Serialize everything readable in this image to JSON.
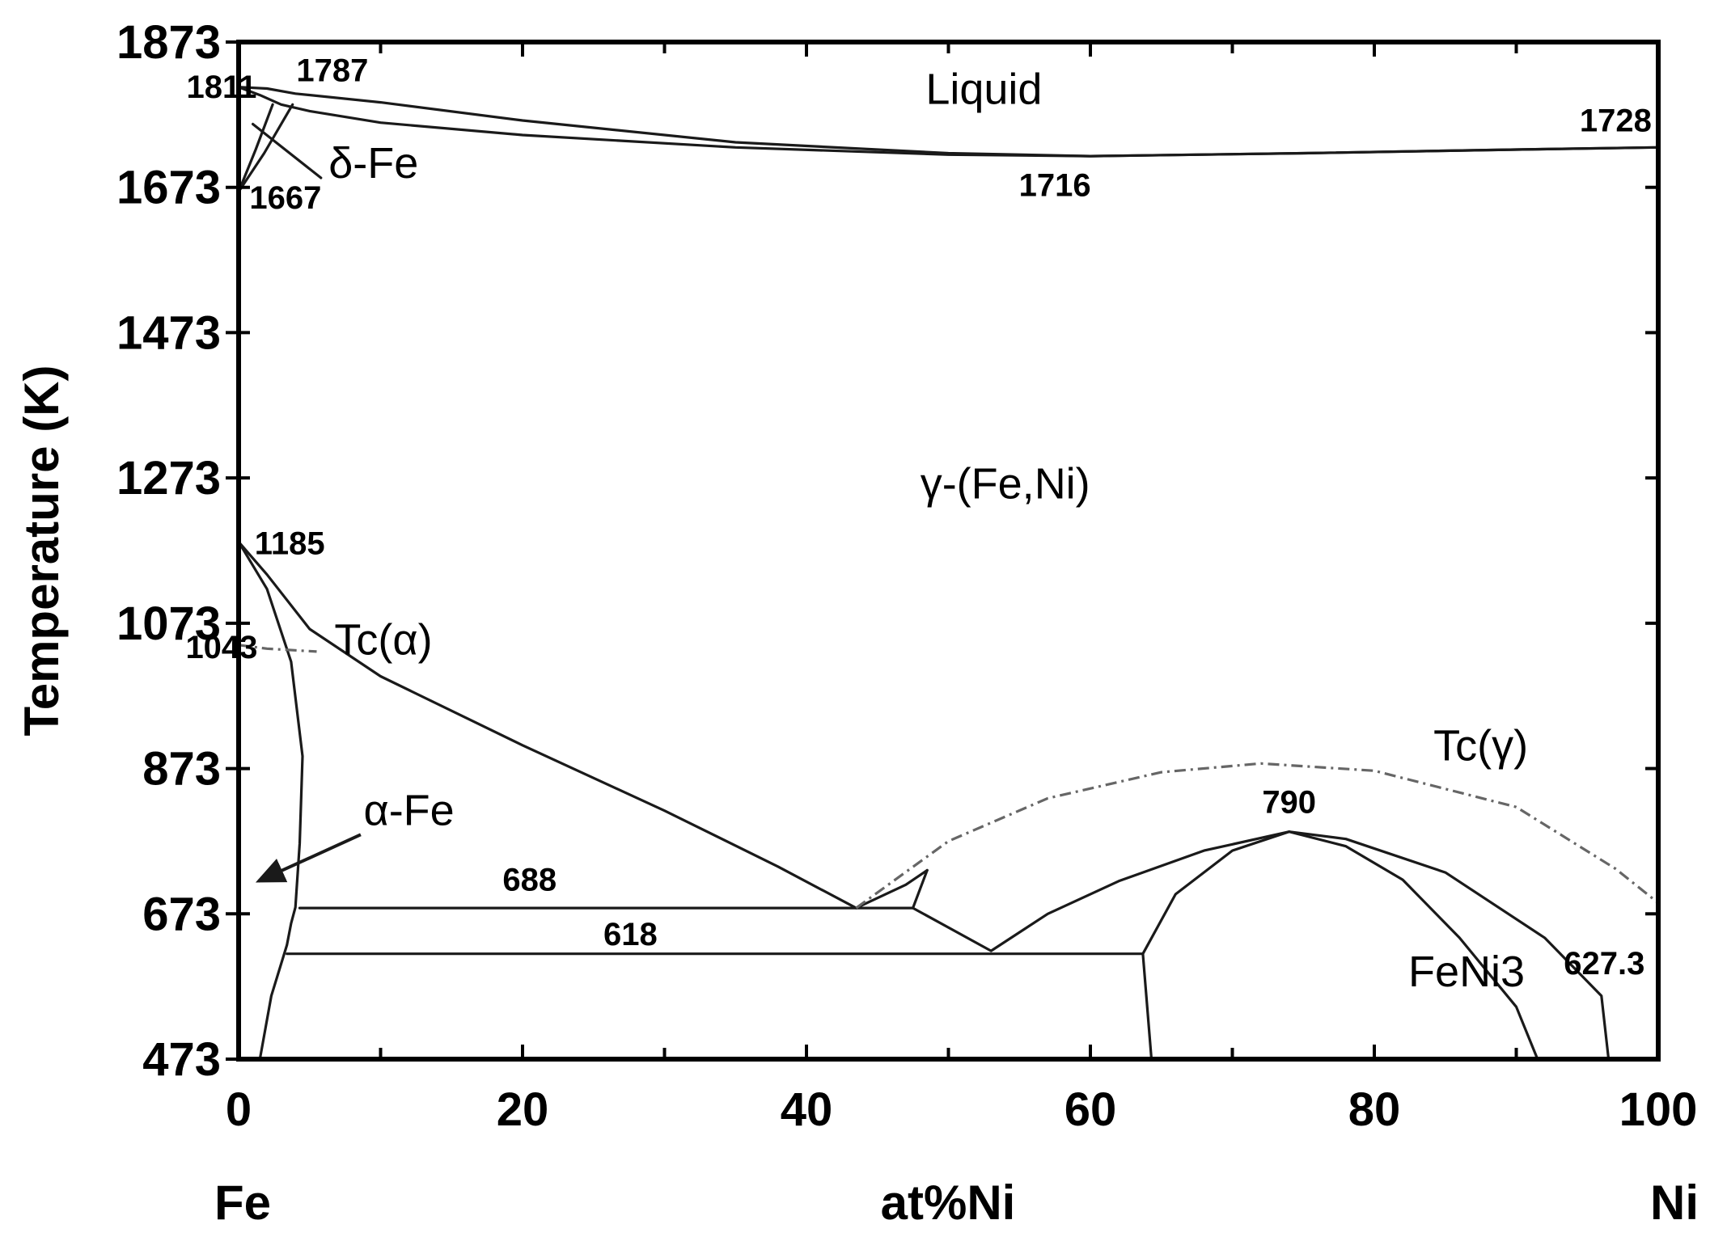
{
  "chart_data": {
    "type": "line",
    "title": "",
    "xlabel": "at%Ni",
    "ylabel": "Temperature (K)",
    "x_end_labels": {
      "left": "Fe",
      "right": "Ni"
    },
    "xlim": [
      0,
      100
    ],
    "ylim": [
      473,
      1873
    ],
    "x_ticks": [
      0,
      20,
      40,
      60,
      80,
      100
    ],
    "x_minor_ticks": [
      10,
      30,
      50,
      70,
      90
    ],
    "y_ticks": [
      473,
      673,
      873,
      1073,
      1273,
      1473,
      1673,
      1873
    ],
    "grid": false,
    "phase_labels": [
      {
        "text": "Liquid",
        "x": 52.5,
        "y": 1788
      },
      {
        "text": "γ-(Fe,Ni)",
        "x": 54,
        "y": 1245
      },
      {
        "text": "α-Fe",
        "x": 12,
        "y": 795
      },
      {
        "text": "FeNi3",
        "x": 86.5,
        "y": 573
      },
      {
        "text": "δ-Fe",
        "x": 9.5,
        "y": 1686
      },
      {
        "text": "Tc(α)",
        "x": 10.2,
        "y": 1030
      },
      {
        "text": "Tc(γ)",
        "x": 87.5,
        "y": 884
      }
    ],
    "annotations": [
      {
        "text": "1811",
        "x": -1.2,
        "y": 1796
      },
      {
        "text": "1787",
        "x": 6.6,
        "y": 1819
      },
      {
        "text": "1667",
        "x": 3.3,
        "y": 1644
      },
      {
        "text": "1716",
        "x": 57.5,
        "y": 1661
      },
      {
        "text": "1728",
        "x": 97,
        "y": 1750
      },
      {
        "text": "1185",
        "x": 3.6,
        "y": 1168
      },
      {
        "text": "1043",
        "x": -1.2,
        "y": 1025
      },
      {
        "text": "688",
        "x": 20.5,
        "y": 705
      },
      {
        "text": "618",
        "x": 27.6,
        "y": 630
      },
      {
        "text": "790",
        "x": 74,
        "y": 812
      },
      {
        "text": "627.3",
        "x": 96.2,
        "y": 590
      }
    ],
    "series": [
      {
        "style": "solid",
        "points": [
          [
            0,
            1811
          ],
          [
            2,
            1809
          ],
          [
            4,
            1802
          ],
          [
            10,
            1790
          ],
          [
            20,
            1765
          ],
          [
            35,
            1735
          ],
          [
            50,
            1720
          ],
          [
            60,
            1716
          ],
          [
            75,
            1720
          ],
          [
            90,
            1725
          ],
          [
            100,
            1728
          ]
        ]
      },
      {
        "style": "solid",
        "points": [
          [
            0,
            1811
          ],
          [
            1.5,
            1800
          ],
          [
            3,
            1787
          ],
          [
            5,
            1778
          ],
          [
            10,
            1762
          ],
          [
            20,
            1745
          ],
          [
            35,
            1728
          ],
          [
            50,
            1718
          ],
          [
            60,
            1716
          ],
          [
            75,
            1720
          ],
          [
            90,
            1725
          ],
          [
            100,
            1728
          ]
        ]
      },
      {
        "style": "solid",
        "points": [
          [
            0,
            1667
          ],
          [
            1.2,
            1725
          ],
          [
            2.4,
            1787
          ]
        ]
      },
      {
        "style": "solid",
        "points": [
          [
            0,
            1667
          ],
          [
            1.8,
            1720
          ],
          [
            3.8,
            1787
          ]
        ]
      },
      {
        "style": "solid",
        "points": [
          [
            1,
            1760
          ],
          [
            5.8,
            1686
          ]
        ]
      },
      {
        "style": "solid",
        "points": [
          [
            0,
            1185
          ],
          [
            2,
            1140
          ],
          [
            5,
            1065
          ],
          [
            10,
            1000
          ],
          [
            20,
            905
          ],
          [
            30,
            815
          ],
          [
            38,
            738
          ],
          [
            43.5,
            681
          ]
        ]
      },
      {
        "style": "solid",
        "points": [
          [
            0,
            1185
          ],
          [
            2,
            1120
          ],
          [
            3.7,
            1020
          ],
          [
            4.5,
            890
          ],
          [
            4.3,
            770
          ],
          [
            4,
            682
          ],
          [
            3.7,
            660
          ],
          [
            3.4,
            630
          ],
          [
            2.3,
            560
          ],
          [
            1.5,
            473
          ]
        ]
      },
      {
        "style": "solid",
        "points": [
          [
            4.3,
            681
          ],
          [
            47.5,
            681
          ]
        ]
      },
      {
        "style": "solid",
        "points": [
          [
            3.4,
            618
          ],
          [
            63.7,
            618
          ]
        ]
      },
      {
        "style": "solid",
        "points": [
          [
            43.5,
            681
          ],
          [
            47,
            713
          ],
          [
            48.5,
            733
          ]
        ]
      },
      {
        "style": "solid",
        "points": [
          [
            48.5,
            733
          ],
          [
            47.5,
            681
          ],
          [
            53,
            622
          ],
          [
            57,
            673
          ],
          [
            62,
            718
          ],
          [
            68,
            760
          ],
          [
            74,
            786
          ],
          [
            78,
            776
          ],
          [
            85,
            730
          ],
          [
            92,
            640
          ],
          [
            96,
            560
          ],
          [
            96.5,
            473
          ]
        ]
      },
      {
        "style": "solid",
        "points": [
          [
            63.7,
            618
          ],
          [
            64.3,
            473
          ]
        ]
      },
      {
        "style": "solid",
        "points": [
          [
            63.7,
            618
          ],
          [
            66,
            700
          ],
          [
            70,
            760
          ],
          [
            74,
            786
          ],
          [
            78,
            766
          ],
          [
            82,
            720
          ],
          [
            86,
            640
          ],
          [
            90,
            545
          ],
          [
            91.5,
            473
          ]
        ]
      },
      {
        "style": "dashed",
        "points": [
          [
            0,
            1043
          ],
          [
            2,
            1038
          ],
          [
            5.5,
            1034
          ]
        ]
      },
      {
        "style": "dashed",
        "points": [
          [
            43.5,
            681
          ],
          [
            50,
            773
          ],
          [
            57,
            832
          ],
          [
            65,
            868
          ],
          [
            72,
            880
          ],
          [
            80,
            870
          ],
          [
            90,
            820
          ],
          [
            97,
            735
          ],
          [
            100,
            688
          ]
        ]
      }
    ],
    "arrows": [
      {
        "from": [
          8.6,
          782
        ],
        "to": [
          1.4,
          718
        ]
      }
    ]
  }
}
